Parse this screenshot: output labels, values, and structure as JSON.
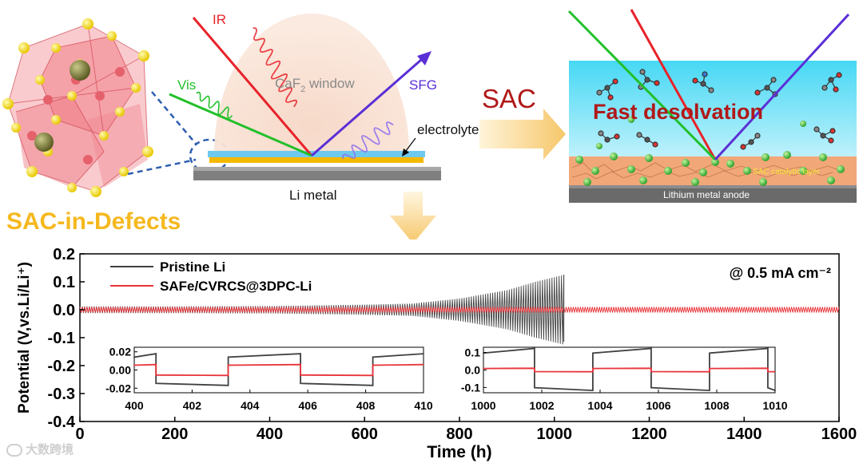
{
  "schematic": {
    "label_defects": "SAC-in-Defects",
    "ir": "IR",
    "vis": "Vis",
    "sfg": "SFG",
    "window_main": "CaF",
    "window_sub": "2",
    "window_tail": " window",
    "electrolyte": "electrolyte",
    "li_metal": "Li metal",
    "sac": "SAC",
    "fast_desolvation": "Fast desolvation",
    "catalytic_layer": "SAC catalytic layer",
    "anode": "Lithium metal anode"
  },
  "colors": {
    "pristine": "#404040",
    "safe": "#e8333a",
    "ir": "#e8222a",
    "vis": "#22c02a",
    "sfg": "#5b2fd6",
    "arrow": "#f6c86a",
    "title_red": "#b01818"
  },
  "watermark": "大数跨境",
  "chart_data": {
    "type": "line",
    "title": "",
    "xlabel": "Time (h)",
    "ylabel": "Potential (V,vs.Li/Li⁺)",
    "xlim": [
      0,
      1600
    ],
    "ylim": [
      -0.4,
      0.2
    ],
    "x_ticks": [
      0,
      200,
      400,
      600,
      800,
      1000,
      1200,
      1400,
      1600
    ],
    "y_ticks": [
      0.2,
      0.1,
      0.0,
      -0.1,
      -0.2,
      -0.3,
      -0.4
    ],
    "x_tick_labels": [
      "0",
      "200",
      "400",
      "600",
      "800",
      "1000",
      "1200",
      "1400",
      "1600"
    ],
    "y_tick_labels": [
      "0.2",
      "0.1",
      "0.0",
      "-0.1",
      "-0.2",
      "-0.3",
      "-0.4"
    ],
    "annotation": "@ 0.5 mA cm⁻²",
    "series": [
      {
        "name": "Pristine Li",
        "color": "#404040",
        "envelope": {
          "x": [
            0,
            200,
            400,
            600,
            700,
            800,
            900,
            960,
            1020
          ],
          "amplitude": [
            0.012,
            0.012,
            0.013,
            0.018,
            0.022,
            0.04,
            0.07,
            0.1,
            0.125
          ],
          "x_end": 1020
        }
      },
      {
        "name": "SAFe/CVRCS@3DPC-Li",
        "color": "#e8333a",
        "envelope": {
          "x": [
            0,
            1600
          ],
          "amplitude": [
            0.01,
            0.01
          ],
          "x_end": 1600
        }
      }
    ],
    "insets": [
      {
        "xlim": [
          400,
          410
        ],
        "ylim": [
          -0.025,
          0.025
        ],
        "x_ticks": [
          400,
          402,
          404,
          406,
          408,
          410
        ],
        "x_tick_labels": [
          "400",
          "402",
          "404",
          "406",
          "408",
          "410"
        ],
        "y_ticks": [
          0.02,
          0.0,
          -0.02
        ],
        "y_tick_labels": [
          "0.02",
          "0.00",
          "-0.02"
        ],
        "pristine_amplitude": 0.016,
        "safe_amplitude": 0.006,
        "half_period": 2.5,
        "start": 398.25
      },
      {
        "xlim": [
          1000,
          1010
        ],
        "ylim": [
          -0.13,
          0.13
        ],
        "x_ticks": [
          1000,
          1002,
          1004,
          1006,
          1008,
          1010
        ],
        "x_tick_labels": [
          "1000",
          "1002",
          "1004",
          "1006",
          "1008",
          "1010"
        ],
        "y_ticks": [
          0.1,
          0.0,
          -0.1
        ],
        "y_tick_labels": [
          "0.1",
          "0.0",
          "-0.1"
        ],
        "pristine_amplitude": 0.11,
        "safe_amplitude": 0.01,
        "half_period": 2.0,
        "start": 999.75
      }
    ]
  }
}
